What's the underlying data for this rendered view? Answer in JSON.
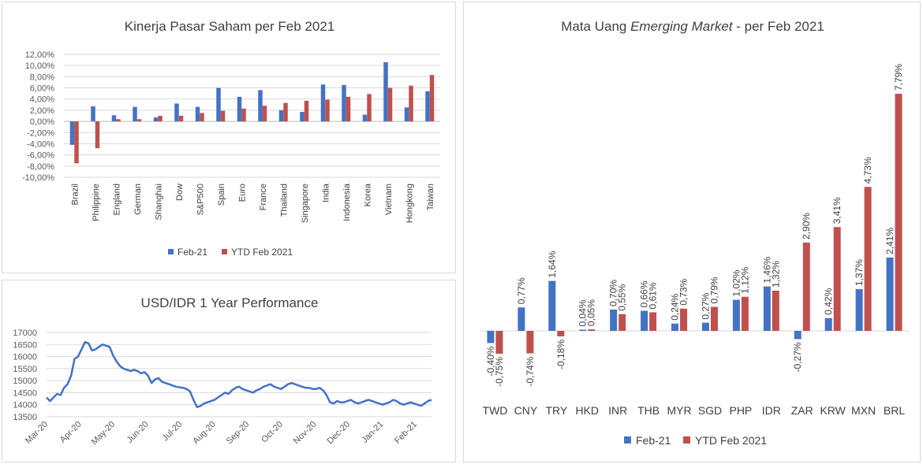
{
  "chart_data": [
    {
      "type": "bar",
      "title": "Kinerja Pasar Saham per Feb 2021",
      "categories": [
        "Brazil",
        "Philippine",
        "England",
        "German",
        "Shanghai",
        "Dow",
        "S&P500",
        "Spain",
        "Euro",
        "France",
        "Thailand",
        "Singapore",
        "India",
        "Indonesia",
        "Korea",
        "Vietnam",
        "Hongkong",
        "Taiwan"
      ],
      "series": [
        {
          "name": "Feb-21",
          "color": "#4472c4",
          "values": [
            -4.2,
            2.7,
            1.1,
            2.6,
            0.7,
            3.2,
            2.6,
            6.0,
            4.4,
            5.6,
            2.0,
            1.7,
            6.6,
            6.5,
            1.2,
            10.6,
            2.5,
            5.4
          ]
        },
        {
          "name": "YTD Feb 2021",
          "color": "#c0504d",
          "values": [
            -7.5,
            -4.8,
            0.4,
            0.4,
            1.0,
            1.0,
            1.5,
            1.9,
            2.3,
            2.8,
            3.3,
            3.7,
            3.9,
            4.4,
            4.9,
            6.0,
            6.4,
            8.3
          ]
        }
      ],
      "ylim": [
        -10,
        12
      ],
      "yticks": [
        "-10,00%",
        "-8,00%",
        "-6,00%",
        "-4,00%",
        "-2,00%",
        "0,00%",
        "2,00%",
        "4,00%",
        "6,00%",
        "8,00%",
        "10,00%",
        "12,00%"
      ],
      "legend": "bottom"
    },
    {
      "type": "line",
      "title": "USD/IDR 1 Year Performance",
      "xticks": [
        "Mar-20",
        "Apr-20",
        "May-20",
        "Jun-20",
        "Jul-20",
        "Aug-20",
        "Sep-20",
        "Oct-20",
        "Nov-20",
        "Dec-20",
        "Jan-21",
        "Feb-21"
      ],
      "yticks": [
        "13500",
        "14000",
        "14500",
        "15000",
        "15500",
        "16000",
        "16500",
        "17000"
      ],
      "ylim": [
        13500,
        17000
      ],
      "color": "#4472c4",
      "series": [
        {
          "values": [
            14300,
            14150,
            14300,
            14450,
            14400,
            14700,
            14850,
            15200,
            15900,
            16000,
            16300,
            16600,
            16550,
            16250,
            16300,
            16400,
            16500,
            16450,
            16400,
            16050,
            15800,
            15600,
            15500,
            15450,
            15400,
            15450,
            15400,
            15300,
            15350,
            15200,
            14900,
            15050,
            15100,
            14950,
            14900,
            14850,
            14800,
            14750,
            14720,
            14700,
            14650,
            14550,
            14200,
            13900,
            13950,
            14050,
            14100,
            14150,
            14200,
            14300,
            14400,
            14500,
            14450,
            14600,
            14700,
            14750,
            14650,
            14600,
            14550,
            14500,
            14600,
            14650,
            14750,
            14800,
            14850,
            14750,
            14700,
            14650,
            14750,
            14850,
            14900,
            14850,
            14800,
            14750,
            14700,
            14700,
            14650,
            14650,
            14700,
            14600,
            14400,
            14100,
            14050,
            14150,
            14100,
            14100,
            14150,
            14200,
            14100,
            14050,
            14100,
            14150,
            14200,
            14150,
            14100,
            14050,
            14000,
            14050,
            14100,
            14200,
            14150,
            14050,
            14000,
            14050,
            14100,
            14050,
            14000,
            13950,
            14050,
            14150,
            14200
          ]
        }
      ],
      "legend": "none"
    },
    {
      "type": "bar",
      "title_prefix": "Mata Uang ",
      "title_italic": "Emerging Market",
      "title_suffix": " - per Feb 2021",
      "categories": [
        "TWD",
        "CNY",
        "TRY",
        "HKD",
        "INR",
        "THB",
        "MYR",
        "SGD",
        "PHP",
        "IDR",
        "ZAR",
        "KRW",
        "MXN",
        "BRL"
      ],
      "series": [
        {
          "name": "Feb-21",
          "color": "#4472c4",
          "values": [
            -0.4,
            0.77,
            1.64,
            0.04,
            0.7,
            0.66,
            0.24,
            0.27,
            1.02,
            1.46,
            -0.27,
            0.42,
            1.37,
            2.41
          ],
          "labels": [
            "-0,40%",
            "0,77%",
            "1,64%",
            "0,04%",
            "0,70%",
            "0,66%",
            "0,24%",
            "0,27%",
            "1,02%",
            "1,46%",
            "-0,27%",
            "0,42%",
            "1,37%",
            "2,41%"
          ]
        },
        {
          "name": "YTD Feb 2021",
          "color": "#c0504d",
          "values": [
            -0.75,
            -0.74,
            -0.18,
            0.05,
            0.55,
            0.61,
            0.73,
            0.79,
            1.12,
            1.32,
            2.9,
            3.41,
            4.73,
            7.79
          ],
          "labels": [
            "-0,75%",
            "-0,74%",
            "-0,18%",
            "0,05%",
            "0,55%",
            "0,61%",
            "0,73%",
            "0,79%",
            "1,12%",
            "1,32%",
            "2,90%",
            "3,41%",
            "4,73%",
            "7,79%"
          ]
        }
      ],
      "legend": "bottom"
    }
  ]
}
